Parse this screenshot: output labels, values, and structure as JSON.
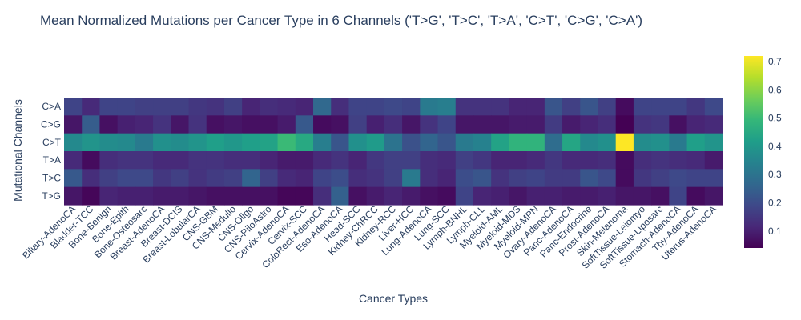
{
  "chart_data": {
    "type": "heatmap",
    "title": "Mean Normalized Mutations per Cancer Type in 6 Channels ('T>G', 'T>C', 'T>A', 'C>T', 'C>G', 'C>A')",
    "xlabel": "Cancer Types",
    "ylabel": "Mutational Channels",
    "colorscale": "Viridis",
    "zrange": [
      0.04,
      0.72
    ],
    "colorbar_ticks": [
      0.1,
      0.2,
      0.3,
      0.4,
      0.5,
      0.6,
      0.7
    ],
    "colorbar_tick_labels": [
      "0.1",
      "0.2",
      "0.3",
      "0.4",
      "0.5",
      "0.6",
      "0.7"
    ],
    "y": [
      "C>A",
      "C>G",
      "C>T",
      "T>A",
      "T>C",
      "T>G"
    ],
    "x": [
      "Biliary-AdenoCA",
      "Bladder-TCC",
      "Bone-Benign",
      "Bone-Epith",
      "Bone-Osteosarc",
      "Breast-AdenoCA",
      "Breast-DCIS",
      "Breast-LobularCA",
      "CNS-GBM",
      "CNS-Medullo",
      "CNS-Oligo",
      "CNS-PiloAstro",
      "Cervix-AdenoCA",
      "Cervix-SCC",
      "ColoRect-AdenoCA",
      "Eso-AdenoCA",
      "Head-SCC",
      "Kidney-ChRCC",
      "Kidney-RCC",
      "Liver-HCC",
      "Lung-AdenoCA",
      "Lung-SCC",
      "Lymph-BNHL",
      "Lymph-CLL",
      "Myeloid-AML",
      "Myeloid-MDS",
      "Myeloid-MPN",
      "Ovary-AdenoCA",
      "Panc-AdenoCA",
      "Panc-Endocrine",
      "Prost-AdenoCA",
      "Skin-Melanoma",
      "SoftTissue-Leiomyo",
      "SoftTissue-Liposarc",
      "Stomach-AdenoCA",
      "Thy-AdenoCA",
      "Uterus-AdenoCA"
    ],
    "x_tick_labels": [
      "Biliary-AdenoCA",
      "Bladder-TCC",
      "Bone-Benign",
      "Bone-Epith",
      "Bone-Osteosarc",
      "Breast-AdenoCA",
      "Breast-DCIS",
      "Breast-LobularCA",
      "CNS-GBM",
      "CNS-Medullo",
      "CNS-Oligo",
      "CNS-PiloAstro",
      "Cervix-AdenoCA",
      "Cervix-SCC",
      "ColoRect-AdenoCA",
      "Eso-AdenoCA",
      "Head-SCC",
      "Kidney-ChRCC",
      "Kidney-RCC",
      "Liver-HCC",
      "Lung-AdenoCA",
      "Lung-SCC",
      "Lymph-BNHL",
      "Lymph-CLL",
      "Myeloid-AML",
      "Myeloid-MDS",
      "Myeloid-MPN",
      "Ovary-AdenoCA",
      "Panc-AdenoCA",
      "Panc-Endocrine",
      "Prost-AdenoCA",
      "Skin-Melanoma",
      "SoftTissue-Leiomyo",
      "SoftTissue-Liposarc",
      "Stomach-AdenoCA",
      "Thy-AdenoCA",
      "Uterus-AdenoCA"
    ],
    "z": [
      [
        0.18,
        0.12,
        0.18,
        0.18,
        0.17,
        0.17,
        0.17,
        0.15,
        0.14,
        0.17,
        0.11,
        0.13,
        0.12,
        0.11,
        0.27,
        0.13,
        0.18,
        0.18,
        0.19,
        0.18,
        0.32,
        0.33,
        0.14,
        0.14,
        0.14,
        0.11,
        0.11,
        0.22,
        0.17,
        0.22,
        0.17,
        0.06,
        0.18,
        0.18,
        0.18,
        0.15,
        0.19
      ],
      [
        0.08,
        0.24,
        0.07,
        0.1,
        0.11,
        0.14,
        0.08,
        0.14,
        0.07,
        0.08,
        0.07,
        0.07,
        0.09,
        0.23,
        0.06,
        0.07,
        0.17,
        0.1,
        0.13,
        0.08,
        0.14,
        0.18,
        0.08,
        0.08,
        0.08,
        0.09,
        0.09,
        0.16,
        0.09,
        0.11,
        0.13,
        0.04,
        0.14,
        0.15,
        0.07,
        0.11,
        0.12
      ],
      [
        0.36,
        0.39,
        0.37,
        0.36,
        0.32,
        0.38,
        0.37,
        0.39,
        0.42,
        0.4,
        0.42,
        0.43,
        0.5,
        0.45,
        0.33,
        0.22,
        0.38,
        0.41,
        0.3,
        0.21,
        0.26,
        0.22,
        0.32,
        0.34,
        0.43,
        0.48,
        0.48,
        0.28,
        0.44,
        0.36,
        0.38,
        0.72,
        0.37,
        0.38,
        0.32,
        0.42,
        0.39
      ],
      [
        0.12,
        0.06,
        0.13,
        0.14,
        0.14,
        0.12,
        0.12,
        0.14,
        0.14,
        0.13,
        0.13,
        0.11,
        0.09,
        0.09,
        0.12,
        0.14,
        0.11,
        0.15,
        0.17,
        0.17,
        0.13,
        0.12,
        0.17,
        0.15,
        0.11,
        0.11,
        0.12,
        0.15,
        0.12,
        0.12,
        0.13,
        0.06,
        0.13,
        0.14,
        0.13,
        0.12,
        0.09
      ],
      [
        0.23,
        0.13,
        0.17,
        0.19,
        0.19,
        0.15,
        0.17,
        0.14,
        0.16,
        0.17,
        0.26,
        0.17,
        0.12,
        0.11,
        0.18,
        0.2,
        0.13,
        0.14,
        0.17,
        0.32,
        0.13,
        0.11,
        0.2,
        0.22,
        0.14,
        0.17,
        0.18,
        0.16,
        0.16,
        0.22,
        0.19,
        0.06,
        0.15,
        0.17,
        0.19,
        0.18,
        0.18
      ],
      [
        0.08,
        0.05,
        0.11,
        0.1,
        0.1,
        0.09,
        0.09,
        0.08,
        0.07,
        0.07,
        0.07,
        0.07,
        0.05,
        0.05,
        0.13,
        0.25,
        0.07,
        0.09,
        0.11,
        0.09,
        0.07,
        0.06,
        0.18,
        0.11,
        0.1,
        0.08,
        0.1,
        0.1,
        0.09,
        0.09,
        0.1,
        0.08,
        0.08,
        0.07,
        0.18,
        0.06,
        0.08
      ]
    ]
  }
}
